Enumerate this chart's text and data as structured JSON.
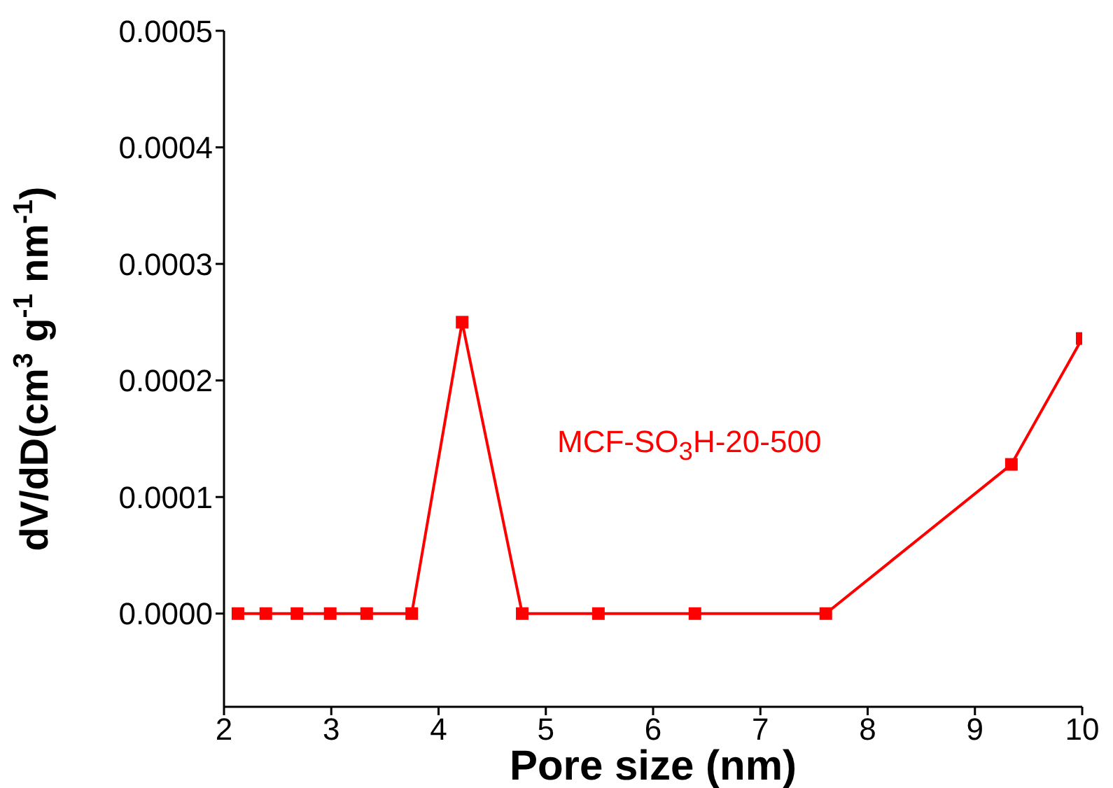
{
  "chart_data": {
    "type": "line",
    "xlabel": "Pore size (nm)",
    "ylabel": "dV/dD(cm$^{3}$ g$^{-1}$ nm$^{-1}$)",
    "x": [
      2.13,
      2.39,
      2.68,
      2.99,
      3.33,
      3.75,
      4.22,
      4.78,
      5.49,
      6.39,
      7.61,
      9.34,
      10
    ],
    "series": [
      {
        "name": "MCF-SO$_{3}$H-20-500",
        "color": "#ff0000",
        "values": [
          0,
          0,
          0,
          0,
          0,
          0,
          0.00025,
          0,
          0,
          0,
          0,
          0.000128,
          0.000236
        ]
      }
    ],
    "xlim": [
      2,
      10
    ],
    "xticks": [
      2,
      3,
      4,
      5,
      6,
      7,
      8,
      9,
      10
    ],
    "ylim": [
      -8e-05,
      0.0005
    ],
    "yticks": [
      {
        "value": 0,
        "label": "0.0000"
      },
      {
        "value": 0.0001,
        "label": "0.0001"
      },
      {
        "value": 0.0002,
        "label": "0.0002"
      },
      {
        "value": 0.0003,
        "label": "0.0003"
      },
      {
        "value": 0.0004,
        "label": "0.0004"
      },
      {
        "value": 0.0005,
        "label": "0.0005"
      }
    ],
    "grid": false,
    "legend": false,
    "marker": "square",
    "line_style": "solid"
  }
}
